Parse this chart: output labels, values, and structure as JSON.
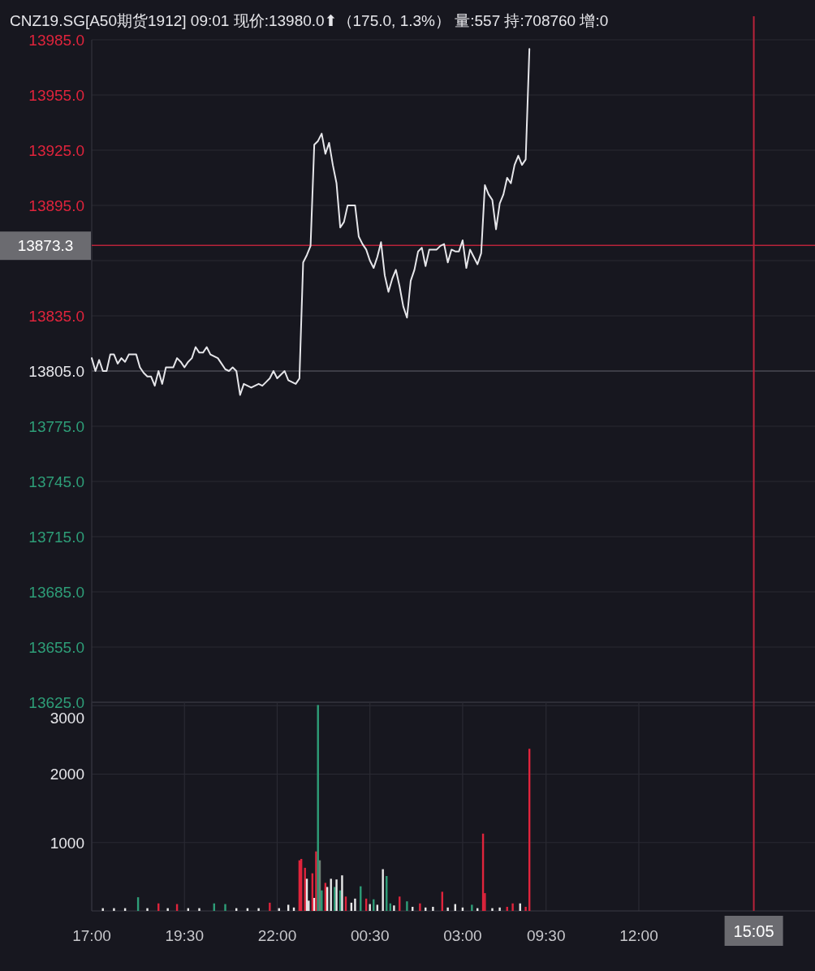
{
  "chart_data": [
    {
      "type": "line",
      "title": "CNZ19.SG[A50期货1912] 09:01 现价:13980.0⬆（175.0, 1.3%） 量:557 持:708760 增:0",
      "categories": [
        null,
        null,
        null,
        null,
        null,
        null,
        null,
        null,
        null,
        null,
        null,
        null,
        null,
        null,
        null,
        null,
        null,
        null,
        null,
        null,
        null,
        null,
        null,
        null,
        null,
        null,
        null,
        null,
        null,
        null,
        null,
        null,
        null,
        null,
        null,
        null,
        null,
        null,
        null,
        null,
        null,
        null,
        null,
        null,
        null,
        null,
        null,
        null,
        null,
        null,
        null,
        null,
        null,
        null,
        null,
        null,
        null,
        null,
        null,
        null,
        null,
        null,
        null,
        null,
        null,
        null,
        null,
        null,
        null,
        null,
        null,
        null,
        null,
        null,
        null,
        null,
        null,
        null,
        null,
        null,
        null,
        null,
        null,
        null,
        null,
        null,
        null,
        null,
        null,
        null,
        null,
        null,
        null,
        null,
        null,
        null,
        null,
        null,
        null,
        null,
        null,
        null,
        null,
        null,
        null,
        null,
        null,
        null,
        null,
        null,
        null,
        null,
        null,
        null,
        null,
        null,
        null,
        null,
        null,
        null,
        null,
        null,
        null,
        null,
        null,
        null,
        null,
        null,
        null,
        null,
        null,
        null,
        null,
        null,
        null,
        null,
        null,
        null,
        null,
        null,
        null,
        null,
        null,
        null,
        null,
        null,
        null,
        null,
        null,
        null,
        null,
        null,
        null,
        null,
        null,
        null,
        null,
        null,
        null,
        null,
        null,
        null,
        null,
        null,
        null,
        null,
        null,
        null,
        null,
        null,
        null,
        null,
        null,
        null,
        null,
        null,
        null,
        null,
        null,
        null,
        null,
        null,
        null,
        null,
        null,
        null,
        null,
        null,
        null,
        null,
        null,
        null,
        null,
        null,
        null,
        null
      ],
      "series": [
        {
          "color": "#e6e6ea",
          "values": [
            13812,
            13805,
            13811,
            13805,
            13805,
            13814,
            13814,
            13809,
            13812,
            13810,
            13814,
            13814,
            13814,
            13807,
            13804,
            13802,
            13802,
            13797,
            13805,
            13798,
            13807,
            13807,
            13807,
            13812,
            13810,
            13807,
            13810,
            13812,
            13818,
            13815,
            13815,
            13818,
            13814,
            13813,
            13812,
            13809,
            13806,
            13805,
            13807,
            13805,
            13792,
            13798,
            13797,
            13796,
            13797,
            13798,
            13797,
            13799,
            13801,
            13805,
            13801,
            13803,
            13805,
            13800,
            13799,
            13798,
            13801,
            13864,
            13868,
            13873,
            13928,
            13930,
            13934,
            13923,
            13929,
            13917,
            13907,
            13883,
            13886,
            13895,
            13895,
            13895,
            13878,
            13874,
            13871,
            13865,
            13861,
            13867,
            13875,
            13857,
            13848,
            13855,
            13860,
            13851,
            13840,
            13834,
            13854,
            13860,
            13870,
            13872,
            13862,
            13871,
            13871,
            13871,
            13873,
            13874,
            13864,
            13871,
            13870,
            13870,
            13876,
            13861,
            13871,
            13867,
            13863,
            13869,
            13906,
            13901,
            13898,
            13882,
            13896,
            13901,
            13910,
            13907,
            13917,
            13922,
            13917,
            13920,
            13980,
            null,
            null,
            null,
            null,
            null,
            null,
            null,
            null,
            null,
            null,
            null,
            null,
            null,
            null,
            null,
            null,
            null,
            null,
            null,
            null,
            null,
            null,
            null,
            null,
            null,
            null,
            null,
            null,
            null,
            null,
            null,
            null,
            null,
            null,
            null,
            null,
            null,
            null,
            null,
            null,
            null,
            null,
            null,
            null,
            null,
            null,
            null,
            null,
            null,
            null,
            null,
            null,
            null,
            null,
            null,
            null,
            null,
            null,
            null,
            null,
            null,
            null,
            null,
            null,
            null,
            null,
            null,
            null,
            null,
            null,
            null,
            null,
            null,
            null,
            null,
            null,
            null
          ]
        }
      ],
      "ylim": [
        13625,
        13985
      ],
      "yticks": [
        {
          "value": 13625,
          "label": "13625.0"
        },
        {
          "value": 13655,
          "label": "13655.0"
        },
        {
          "value": 13685,
          "label": "13685.0"
        },
        {
          "value": 13715,
          "label": "13715.0"
        },
        {
          "value": 13745,
          "label": "13745.0"
        },
        {
          "value": 13775,
          "label": "13775.0"
        },
        {
          "value": 13805,
          "label": "13805.0"
        },
        {
          "value": 13835,
          "label": "13835.0"
        },
        {
          "value": 13865,
          "label": null
        },
        {
          "value": 13895,
          "label": "13895.0"
        },
        {
          "value": 13925,
          "label": "13925.0"
        },
        {
          "value": 13955,
          "label": "13955.0"
        },
        {
          "value": 13985,
          "label": "13985.0"
        }
      ],
      "tick_labels": "y",
      "grid": "y",
      "ref_lines": [
        {
          "axis": "y",
          "value": 13805,
          "color": "#3c3c46"
        },
        {
          "axis": "y",
          "value": 13873.3,
          "label": "13873.3",
          "color": "#b8233a"
        }
      ]
    },
    {
      "type": "bar",
      "categories": [
        "17:00",
        null,
        null,
        null,
        null,
        null,
        null,
        null,
        null,
        null,
        null,
        null,
        null,
        null,
        null,
        null,
        null,
        null,
        null,
        null,
        null,
        null,
        null,
        null,
        null,
        null,
        null,
        null,
        null,
        null,
        null,
        null,
        null,
        null,
        null,
        null,
        null,
        null,
        null,
        null,
        null,
        null,
        null,
        null,
        null,
        null,
        null,
        null,
        null,
        null,
        "19:30",
        null,
        null,
        null,
        null,
        null,
        null,
        null,
        null,
        null,
        null,
        null,
        null,
        null,
        null,
        null,
        null,
        null,
        null,
        null,
        null,
        null,
        null,
        null,
        null,
        null,
        null,
        null,
        null,
        null,
        null,
        null,
        null,
        null,
        null,
        null,
        null,
        null,
        null,
        null,
        null,
        null,
        null,
        null,
        null,
        null,
        null,
        null,
        null,
        null,
        "22:00",
        null,
        null,
        null,
        null,
        null,
        null,
        null,
        null,
        null,
        null,
        null,
        null,
        null,
        null,
        null,
        null,
        null,
        null,
        null,
        null,
        null,
        null,
        null,
        null,
        null,
        null,
        null,
        null,
        null,
        null,
        null,
        null,
        null,
        null,
        null,
        null,
        null,
        null,
        null,
        null,
        null,
        null,
        null,
        null,
        null,
        null,
        null,
        null,
        null,
        "00:30",
        null,
        null,
        null,
        null,
        null,
        null,
        null,
        null,
        null,
        null,
        null,
        null,
        null,
        null,
        null,
        null,
        null,
        null,
        null,
        null,
        null,
        null,
        null,
        null,
        null,
        null,
        null,
        null,
        null,
        null,
        null,
        null,
        null,
        null,
        null,
        null,
        null,
        null,
        null,
        null,
        null,
        null,
        null,
        null,
        null,
        null,
        null,
        null,
        null,
        "03:00",
        null,
        null,
        null,
        null,
        null,
        null,
        null,
        null,
        null,
        null,
        null,
        null,
        null,
        null,
        null,
        null,
        null,
        null,
        null,
        null,
        null,
        null,
        null,
        null,
        null,
        null,
        null,
        null,
        null,
        null,
        null,
        null,
        null,
        null,
        null,
        null,
        null,
        null,
        null,
        null,
        null,
        null,
        null,
        null,
        "09:30",
        null,
        null,
        null,
        null,
        null,
        null,
        null,
        null,
        null,
        null,
        null,
        null,
        null,
        null,
        null,
        null,
        null,
        null,
        null,
        null,
        null,
        null,
        null,
        null,
        null,
        null,
        null,
        null,
        null,
        null,
        null,
        null,
        null,
        null,
        null,
        null,
        null,
        null,
        null,
        null,
        null,
        null,
        null,
        null,
        null,
        null,
        null,
        null,
        null,
        "12:00",
        null,
        null,
        null,
        null,
        null,
        null,
        null,
        null,
        null,
        null,
        null,
        null,
        null,
        null,
        null,
        null,
        null,
        null,
        null,
        null,
        null,
        null,
        null,
        null,
        null,
        null,
        null,
        null,
        null,
        null,
        null,
        null,
        null,
        null,
        null,
        null,
        null,
        null,
        null,
        null,
        null,
        null,
        null,
        null,
        null,
        null,
        null,
        null,
        null,
        null,
        null,
        null,
        null,
        null,
        null,
        null,
        null,
        null,
        null,
        null,
        null,
        "15:05",
        null,
        null,
        null,
        null,
        null,
        null,
        null,
        null,
        null,
        null,
        null,
        null,
        null,
        null,
        null,
        null,
        null,
        null,
        null,
        null,
        null,
        null,
        null,
        null,
        null,
        null,
        null,
        null,
        null,
        null,
        null,
        null,
        null
      ],
      "values": [
        null,
        null,
        null,
        null,
        null,
        null,
        40,
        null,
        null,
        null,
        null,
        null,
        40,
        null,
        null,
        null,
        null,
        null,
        40,
        null,
        null,
        null,
        null,
        null,
        null,
        200,
        null,
        null,
        null,
        null,
        40,
        null,
        null,
        null,
        null,
        null,
        110,
        null,
        null,
        null,
        null,
        40,
        null,
        null,
        null,
        null,
        100,
        null,
        null,
        null,
        null,
        null,
        40,
        null,
        null,
        null,
        null,
        null,
        40,
        null,
        null,
        null,
        null,
        null,
        null,
        null,
        110,
        null,
        null,
        null,
        null,
        null,
        100,
        null,
        null,
        null,
        null,
        null,
        40,
        null,
        null,
        null,
        null,
        null,
        40,
        null,
        null,
        null,
        null,
        null,
        40,
        null,
        null,
        null,
        null,
        null,
        120,
        null,
        null,
        null,
        null,
        40,
        null,
        null,
        null,
        null,
        90,
        null,
        null,
        50,
        null,
        null,
        740,
        760,
        null,
        630,
        470,
        150,
        null,
        550,
        190,
        870,
        3010,
        740,
        300,
        null,
        410,
        350,
        null,
        470,
        null,
        350,
        460,
        null,
        300,
        520,
        null,
        210,
        null,
        null,
        120,
        null,
        180,
        null,
        null,
        360,
        null,
        null,
        180,
        null,
        100,
        null,
        170,
        null,
        90,
        null,
        null,
        610,
        null,
        510,
        null,
        110,
        null,
        80,
        null,
        null,
        210,
        null,
        null,
        null,
        140,
        null,
        null,
        60,
        null,
        null,
        null,
        110,
        null,
        null,
        50,
        null,
        null,
        null,
        60,
        null,
        null,
        null,
        null,
        280,
        null,
        null,
        50,
        null,
        null,
        null,
        100,
        null,
        null,
        null,
        50,
        null,
        null,
        null,
        null,
        90,
        null,
        null,
        40,
        null,
        null,
        1130,
        260,
        null,
        null,
        null,
        40,
        null,
        null,
        null,
        50,
        null,
        null,
        null,
        60,
        null,
        null,
        110,
        null,
        null,
        null,
        110,
        null,
        null,
        60,
        null,
        2370,
        null,
        null,
        null,
        null,
        null,
        null,
        null,
        null,
        null,
        null,
        null,
        null,
        null,
        null,
        null,
        null,
        null,
        null,
        null,
        null,
        null,
        null,
        null,
        null,
        null,
        null,
        null,
        null,
        null,
        null,
        null,
        null,
        null,
        null,
        null,
        null,
        null,
        null,
        null,
        null,
        null,
        null,
        null,
        null,
        null,
        null,
        null,
        null,
        null,
        null,
        null,
        null,
        null,
        null,
        null,
        null,
        null,
        null,
        null,
        null,
        null,
        null,
        null,
        null,
        null,
        null,
        null,
        null,
        null,
        null,
        null,
        null,
        null,
        null,
        null,
        null,
        null,
        null,
        null,
        null,
        null,
        null,
        null,
        null,
        null,
        null,
        null,
        null,
        null,
        null,
        null,
        null,
        null,
        null,
        null,
        null,
        null,
        null,
        null,
        null,
        null,
        null,
        null,
        null,
        null,
        null,
        null,
        null,
        null,
        null,
        null,
        null,
        null,
        null,
        null,
        null,
        null,
        null,
        null,
        null,
        null,
        null,
        null,
        null,
        null,
        null,
        null,
        null,
        null,
        null,
        null,
        null,
        null,
        null,
        null,
        null,
        null,
        null,
        null,
        null,
        null,
        null,
        null,
        null,
        null,
        null,
        null,
        null,
        null,
        null,
        null,
        null,
        null,
        null
      ],
      "colors": [
        null,
        null,
        null,
        null,
        null,
        null,
        "#e8e8e8",
        null,
        null,
        null,
        null,
        null,
        "#e8e8e8",
        null,
        null,
        null,
        null,
        null,
        "#e8e8e8",
        null,
        null,
        null,
        null,
        null,
        null,
        "#2e9e78",
        null,
        null,
        null,
        null,
        "#e8e8e8",
        null,
        null,
        null,
        null,
        null,
        "#e0243c",
        null,
        null,
        null,
        null,
        "#e8e8e8",
        null,
        null,
        null,
        null,
        "#e0243c",
        null,
        null,
        null,
        null,
        null,
        "#e8e8e8",
        null,
        null,
        null,
        null,
        null,
        "#e8e8e8",
        null,
        null,
        null,
        null,
        null,
        null,
        null,
        "#2e9e78",
        null,
        null,
        null,
        null,
        null,
        "#2e9e78",
        null,
        null,
        null,
        null,
        null,
        "#e8e8e8",
        null,
        null,
        null,
        null,
        null,
        "#e8e8e8",
        null,
        null,
        null,
        null,
        null,
        "#e8e8e8",
        null,
        null,
        null,
        null,
        null,
        "#e0243c",
        null,
        null,
        null,
        null,
        "#e8e8e8",
        null,
        null,
        null,
        null,
        "#e8e8e8",
        null,
        null,
        "#e8e8e8",
        null,
        null,
        "#e0243c",
        "#e0243c",
        null,
        "#e0243c",
        "#e8e8e8",
        "#e8e8e8",
        null,
        "#e0243c",
        "#e8e8e8",
        "#e0243c",
        "#2e9e78",
        "#6e7f74",
        "#2e9e78",
        null,
        "#e0243c",
        "#e8e8e8",
        null,
        "#e8e8e8",
        null,
        "#2e9e78",
        "#e8e8e8",
        null,
        "#2e9e78",
        "#e8e8e8",
        null,
        "#e0243c",
        null,
        null,
        "#e8e8e8",
        null,
        "#e8e8e8",
        null,
        null,
        "#2e9e78",
        null,
        null,
        "#e0243c",
        null,
        "#e8e8e8",
        null,
        "#2e9e78",
        null,
        "#e8e8e8",
        null,
        null,
        "#e8e8e8",
        null,
        "#2e9e78",
        null,
        "#2e9e78",
        null,
        "#e8e8e8",
        null,
        null,
        "#e0243c",
        null,
        null,
        null,
        "#2e9e78",
        null,
        null,
        "#e8e8e8",
        null,
        null,
        null,
        "#e0243c",
        null,
        null,
        "#e8e8e8",
        null,
        null,
        null,
        "#e8e8e8",
        null,
        null,
        null,
        null,
        "#e0243c",
        null,
        null,
        "#e8e8e8",
        null,
        null,
        null,
        "#e8e8e8",
        null,
        null,
        null,
        "#e8e8e8",
        null,
        null,
        null,
        null,
        "#2e9e78",
        null,
        null,
        "#e8e8e8",
        null,
        null,
        "#e0243c",
        "#e0243c",
        null,
        null,
        null,
        "#e8e8e8",
        null,
        null,
        null,
        "#e8e8e8",
        null,
        null,
        null,
        "#e0243c",
        null,
        null,
        "#e0243c",
        null,
        null,
        null,
        "#e8e8e8",
        null,
        null,
        "#e0243c",
        null,
        "#e0243c",
        null,
        null,
        null,
        null,
        null,
        null,
        null,
        null,
        null,
        null,
        null,
        null,
        null,
        null,
        null,
        null,
        null,
        null,
        null,
        null,
        null,
        null,
        null,
        null,
        null,
        null,
        null,
        null,
        null,
        null,
        null,
        null,
        null,
        null,
        null,
        null,
        null,
        null,
        null,
        null,
        null,
        null,
        null,
        null,
        null,
        null,
        null,
        null,
        null,
        null,
        null,
        null,
        null,
        null,
        null,
        null,
        null,
        null,
        null,
        null,
        null,
        null,
        null,
        null,
        null,
        null,
        null,
        null,
        null,
        null,
        null,
        null,
        null,
        null,
        null,
        null,
        null,
        null,
        null,
        null,
        null,
        null,
        null,
        null,
        null,
        null,
        null,
        null,
        null,
        null,
        null,
        null,
        null,
        null,
        null,
        null,
        null,
        null,
        null,
        null,
        null,
        null,
        null,
        null,
        null,
        null,
        null,
        null,
        null,
        null,
        null,
        null,
        null,
        null,
        null,
        null,
        null,
        null,
        null,
        null,
        null,
        null,
        null,
        null,
        null,
        null,
        null,
        null,
        null,
        null,
        null,
        null,
        null,
        null,
        null,
        null,
        null,
        null,
        null,
        null,
        null,
        null,
        null,
        null,
        null,
        null,
        null,
        null,
        null,
        null,
        null,
        null,
        null,
        null
      ],
      "ylim": [
        0,
        3050
      ],
      "yticks": [
        1000,
        2000,
        3000
      ],
      "grid": true,
      "ref_lines": [
        {
          "axis": "x",
          "value": "15:05",
          "color": "#b8233a"
        }
      ]
    }
  ]
}
